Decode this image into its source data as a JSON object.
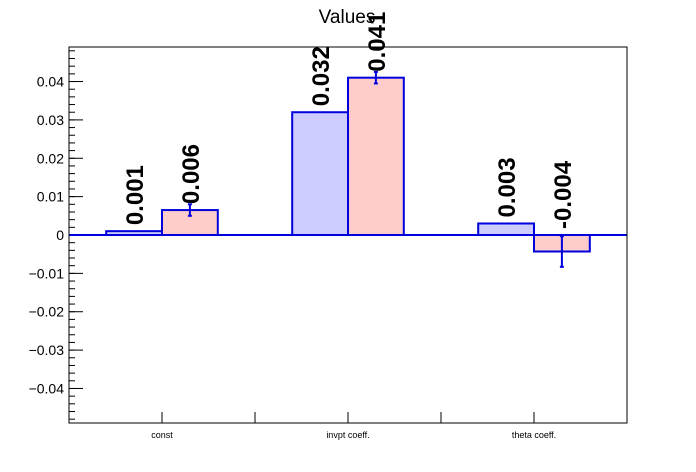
{
  "chart_data": {
    "type": "bar",
    "title": "Values",
    "xlabel": "",
    "ylabel": "",
    "categories": [
      "const",
      "invpt coeff.",
      "theta coeff."
    ],
    "ylim": [
      -0.049,
      0.049
    ],
    "yticks": [
      -0.04,
      -0.03,
      -0.02,
      -0.01,
      0,
      0.01,
      0.02,
      0.03,
      0.04
    ],
    "ytick_labels": [
      "−0.04",
      "−0.03",
      "−0.02",
      "−0.01",
      "0",
      "0.01",
      "0.02",
      "0.03",
      "0.04"
    ],
    "grid": false,
    "series": [
      {
        "values": [
          0.001,
          0.032,
          0.003
        ],
        "labels": [
          "0.001",
          "0.032",
          "0.003"
        ],
        "errors": [
          0,
          0,
          0
        ],
        "fill": "#ccccff",
        "edge": "#0000dd"
      },
      {
        "values": [
          0.0065,
          0.041,
          -0.0043
        ],
        "labels": [
          "0.006",
          "0.041",
          "-0.004"
        ],
        "errors": [
          0.0015,
          0.0015,
          0.004
        ],
        "fill": "#ffcccc",
        "edge": "#0000dd"
      }
    ]
  }
}
